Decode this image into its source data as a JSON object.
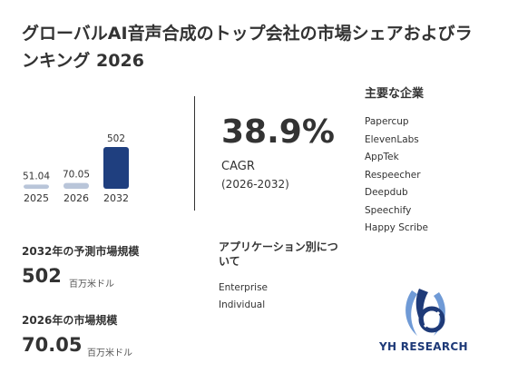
{
  "title": "グローバルAI音声合成のトップ会社の市場シェアおよびランキング 2026",
  "chart_data": {
    "type": "bar",
    "categories": [
      "2025",
      "2026",
      "2032"
    ],
    "values": [
      51.04,
      70.05,
      502
    ],
    "value_labels": [
      "51.04",
      "70.05",
      "502"
    ],
    "colors": [
      "#b9c5d9",
      "#b9c5d9",
      "#1f3f7f"
    ],
    "ylim": [
      0,
      502
    ]
  },
  "cagr": {
    "value": "38.9%",
    "label": "CAGR",
    "period": "(2026-2032)"
  },
  "companies": {
    "heading": "主要な企業",
    "items": [
      "Papercup",
      "ElevenLabs",
      "AppTek",
      "Respeecher",
      "Deepdub",
      "Speechify",
      "Happy Scribe"
    ]
  },
  "market_2032": {
    "label": "2032年の予測市場規模",
    "value": "502",
    "unit": "百万米ドル"
  },
  "market_2026": {
    "label": "2026年の市場規模",
    "value": "70.05",
    "unit": "百万米ドル"
  },
  "applications": {
    "heading": "アプリケーション別について",
    "items": [
      "Enterprise",
      "Individual"
    ]
  },
  "logo": {
    "text": "YH RESEARCH",
    "colors": [
      "#1e3a78",
      "#6f9ad6"
    ]
  }
}
